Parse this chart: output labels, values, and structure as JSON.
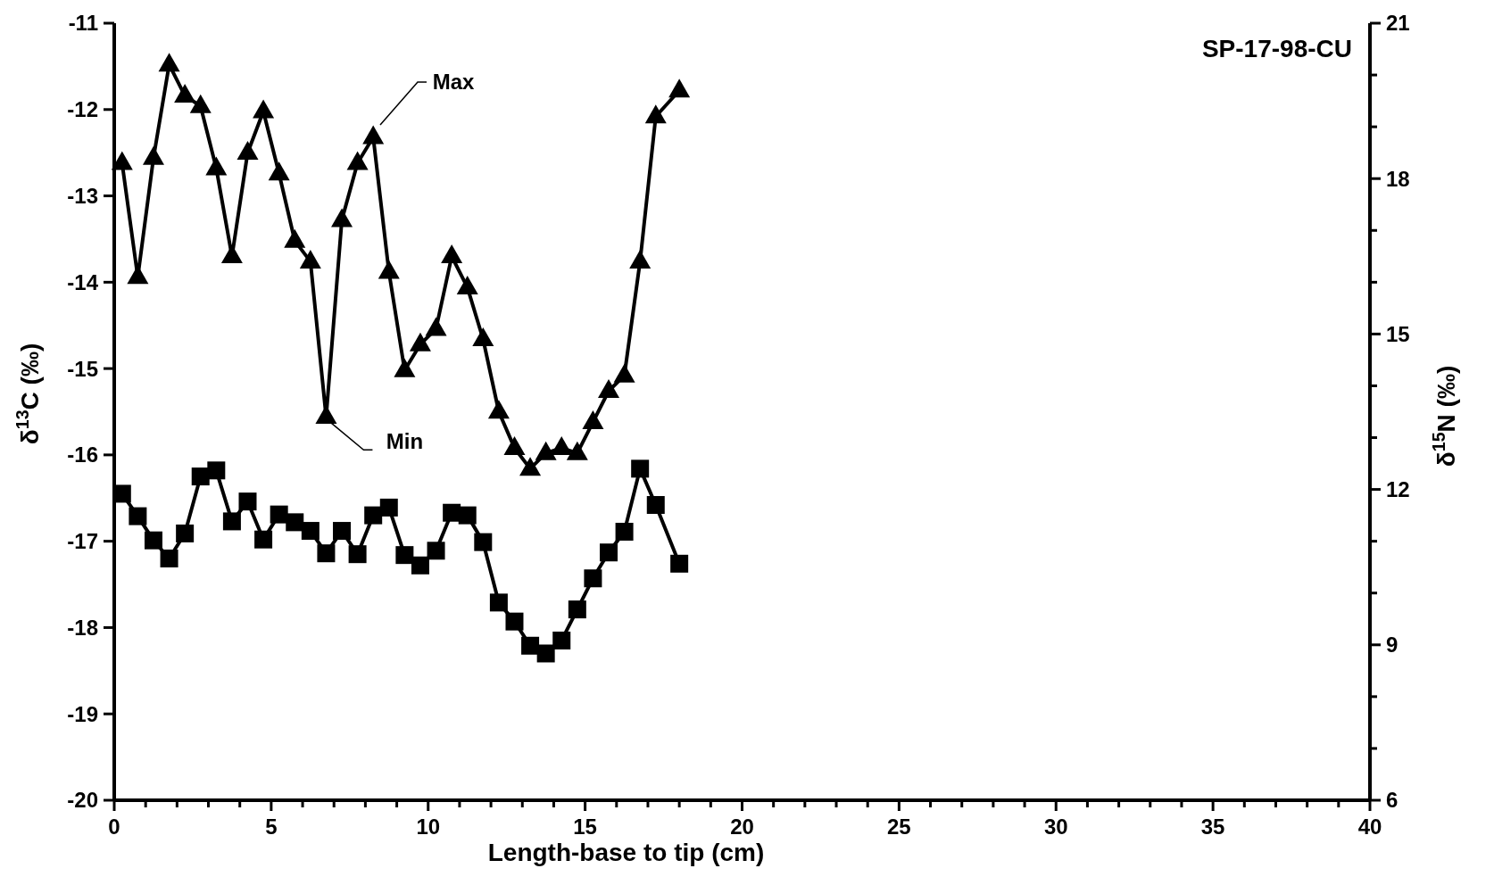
{
  "chart_data": {
    "type": "line",
    "title": "SP-17-98-CU",
    "xlabel": "Length-base to tip (cm)",
    "ylabel": "δ$^{13}$C (‰)",
    "y2label": "δ$^{15}$N (‰)",
    "x": [
      0.25,
      0.75,
      1.25,
      1.75,
      2.25,
      2.75,
      3.25,
      3.75,
      4.25,
      4.75,
      5.25,
      5.75,
      6.25,
      6.75,
      7.25,
      7.75,
      8.25,
      8.75,
      9.25,
      9.75,
      10.25,
      10.75,
      11.25,
      11.75,
      12.25,
      12.75,
      13.25,
      13.75,
      14.25,
      14.75,
      15.25,
      15.75,
      16.25,
      16.75,
      17.25,
      18.0
    ],
    "series": [
      {
        "color": "#000000",
        "marker": "triangle",
        "axis": "y2",
        "values": [
          18.3,
          16.1,
          18.4,
          20.2,
          19.6,
          19.4,
          18.2,
          16.5,
          18.5,
          19.3,
          18.1,
          16.8,
          16.4,
          13.4,
          17.2,
          18.3,
          18.8,
          16.2,
          14.3,
          14.8,
          15.1,
          16.5,
          15.9,
          14.9,
          13.5,
          12.8,
          12.4,
          12.7,
          12.8,
          12.7,
          13.3,
          13.9,
          14.2,
          16.4,
          19.2,
          19.7
        ]
      },
      {
        "color": "#000000",
        "marker": "square",
        "values": [
          -16.45,
          -16.71,
          -16.99,
          -17.2,
          -16.91,
          -16.25,
          -16.18,
          -16.77,
          -16.54,
          -16.98,
          -16.69,
          -16.78,
          -16.88,
          -17.14,
          -16.88,
          -17.15,
          -16.7,
          -16.61,
          -17.16,
          -17.28,
          -17.11,
          -16.67,
          -16.7,
          -17.01,
          -17.71,
          -17.93,
          -18.21,
          -18.3,
          -18.15,
          -17.79,
          -17.43,
          -17.13,
          -16.89,
          -16.16,
          -16.58,
          -17.26
        ]
      }
    ],
    "annotations": [
      "Max",
      {
        "text": "Min",
        "x": 6.75,
        "y": -15.55
      }
    ],
    "xlim": [
      0,
      40
    ],
    "xticks": [
      0,
      {
        "value": 1,
        "label": null
      },
      {
        "value": 2,
        "label": null
      },
      {
        "value": 3,
        "label": null
      },
      {
        "value": 4,
        "label": null
      },
      5,
      {
        "value": 6,
        "label": null
      },
      {
        "value": 7,
        "label": null
      },
      {
        "value": 8,
        "label": null
      },
      {
        "value": 9,
        "label": null
      },
      10,
      {
        "value": 11,
        "label": null
      },
      {
        "value": 12,
        "label": null
      },
      {
        "value": 13,
        "label": null
      },
      {
        "value": 14,
        "label": null
      },
      15,
      {
        "value": 16,
        "label": null
      },
      {
        "value": 17,
        "label": null
      },
      {
        "value": 18,
        "label": null
      },
      {
        "value": 19,
        "label": null
      },
      20,
      {
        "value": 21,
        "label": null
      },
      {
        "value": 22,
        "label": null
      },
      {
        "value": 23,
        "label": null
      },
      {
        "value": 24,
        "label": null
      },
      25,
      {
        "value": 26,
        "label": null
      },
      {
        "value": 27,
        "label": null
      },
      {
        "value": 28,
        "label": null
      },
      {
        "value": 29,
        "label": null
      },
      30,
      {
        "value": 31,
        "label": null
      },
      {
        "value": 32,
        "label": null
      },
      {
        "value": 33,
        "label": null
      },
      {
        "value": 34,
        "label": null
      },
      35,
      {
        "value": 36,
        "label": null
      },
      {
        "value": 37,
        "label": null
      },
      {
        "value": 38,
        "label": null
      },
      {
        "value": 39,
        "label": null
      },
      40
    ],
    "ylim": [
      -20,
      -11
    ],
    "yticks": [
      -20,
      -19,
      -18,
      -17,
      -16,
      -15,
      -14,
      -13,
      -12,
      -11
    ],
    "y2lim": [
      6,
      21
    ],
    "y2ticks": [
      6,
      {
        "value": 7,
        "label": null
      },
      {
        "value": 8,
        "label": null
      },
      9,
      {
        "value": 10,
        "label": null
      },
      {
        "value": 11,
        "label": null
      },
      12,
      {
        "value": 13,
        "label": null
      },
      {
        "value": 14,
        "label": null
      },
      15,
      {
        "value": 16,
        "label": null
      },
      {
        "value": 17,
        "label": null
      },
      18,
      {
        "value": 19,
        "label": null
      },
      {
        "value": 20,
        "label": null
      },
      21
    ],
    "grid": false,
    "line_style": "solid"
  }
}
